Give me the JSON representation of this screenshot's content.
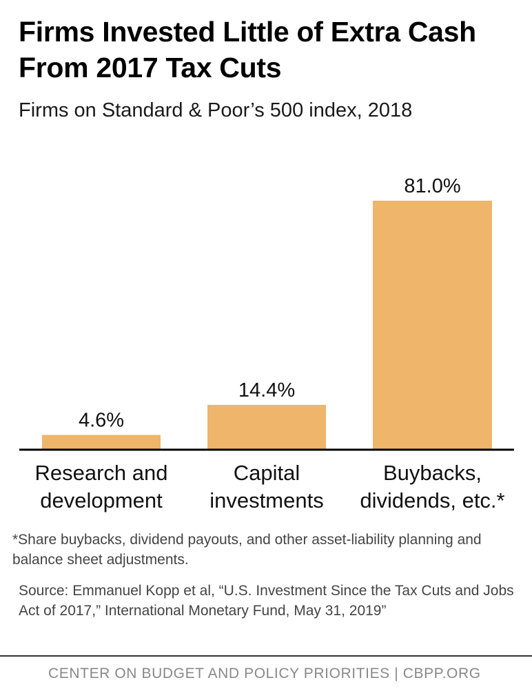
{
  "header": {
    "title": "Firms Invested Little of Extra Cash From 2017 Tax Cuts",
    "subtitle": "Firms on Standard & Poor’s 500 index, 2018"
  },
  "chart_data": {
    "type": "bar",
    "title": "Firms Invested Little of Extra Cash From 2017 Tax Cuts",
    "subtitle": "Firms on Standard & Poor’s 500 index, 2018",
    "categories": [
      [
        "Research and",
        "development"
      ],
      [
        "Capital",
        "investments"
      ],
      [
        "Buybacks,",
        "dividends, etc.*"
      ]
    ],
    "values": [
      4.6,
      14.4,
      81.0
    ],
    "value_labels": [
      "4.6%",
      "14.4%",
      "81.0%"
    ],
    "unit": "%",
    "ylim": [
      0,
      81.0
    ],
    "grid": false,
    "bar_color": "#EFB56B",
    "axis_color": "#000000"
  },
  "notes": {
    "footnote": "*Share buybacks, dividend payouts, and other asset-liability planning and balance sheet adjustments.",
    "source": "Source: Emmanuel Kopp et al, “U.S. Investment Since the Tax Cuts and Jobs Act of 2017,” International Monetary Fund, May 31, 2019”"
  },
  "footer": {
    "credit": "CENTER ON BUDGET AND POLICY PRIORITIES | CBPP.ORG"
  }
}
